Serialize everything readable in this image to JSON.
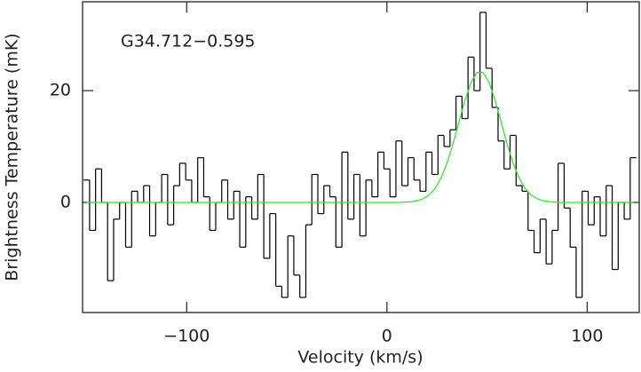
{
  "chart_data": {
    "type": "step",
    "annotation": "G34.712−0.595",
    "x_label": "Velocity (km/s)",
    "y_label": "Brightness Temperature (mK)",
    "xlim": [
      -152,
      126
    ],
    "ylim": [
      -19.7,
      35.9
    ],
    "xticks": [
      {
        "value": -100,
        "label": "−100"
      },
      0,
      100
    ],
    "yticks": [
      0,
      20
    ],
    "x": [
      -150,
      -147,
      -144,
      -141,
      -138,
      -135,
      -132,
      -129,
      -126,
      -123,
      -120,
      -117,
      -114,
      -111,
      -108,
      -105,
      -102,
      -99,
      -96,
      -93,
      -90,
      -87,
      -84,
      -81,
      -78,
      -75,
      -72,
      -69,
      -66,
      -63,
      -60,
      -57,
      -54,
      -51,
      -48,
      -45,
      -42,
      -39,
      -36,
      -33,
      -30,
      -27,
      -24,
      -21,
      -18,
      -15,
      -12,
      -9,
      -6,
      -3,
      0,
      3,
      6,
      9,
      12,
      15,
      18,
      21,
      24,
      27,
      30,
      33,
      36,
      39,
      42,
      45,
      48,
      51,
      54,
      57,
      60,
      63,
      66,
      69,
      72,
      75,
      78,
      81,
      84,
      87,
      90,
      93,
      96,
      99,
      102,
      105,
      108,
      111,
      114,
      117,
      120,
      123
    ],
    "series": [
      {
        "color": "#000000",
        "style": "step",
        "values": [
          4,
          -5,
          6,
          0,
          -14,
          -3,
          0,
          -8,
          2,
          0,
          3,
          -6,
          0,
          5,
          -4,
          3,
          7,
          4,
          0,
          8,
          1,
          -5,
          0,
          4,
          -3,
          2,
          -8,
          1,
          -3,
          5,
          -10,
          -2,
          -15,
          -17,
          -6,
          -13,
          -17,
          -4,
          5,
          -2,
          3,
          1,
          -8,
          9,
          -3,
          5,
          -6,
          4,
          1,
          9,
          6,
          1,
          11,
          3,
          8,
          4,
          2,
          9,
          5,
          12,
          10,
          13,
          19,
          15,
          26,
          20,
          34,
          24,
          17,
          11,
          6,
          12,
          3,
          2,
          -5,
          -9,
          -3,
          -11,
          -5,
          7,
          -1,
          -8,
          -17,
          2,
          -4,
          1,
          -6,
          3,
          -12,
          0,
          -3,
          8
        ]
      },
      {
        "color": "#33e833",
        "style": "line",
        "values": [
          0,
          0,
          0,
          0,
          0,
          0,
          0,
          0,
          0,
          0,
          0,
          0,
          0,
          0,
          0,
          0,
          0,
          0,
          0,
          0,
          0,
          0,
          0,
          0,
          0,
          0,
          0,
          0,
          0,
          0,
          0,
          0,
          0,
          0,
          0,
          0,
          0,
          0,
          0,
          0,
          0,
          0,
          0,
          0,
          0,
          0,
          0,
          0,
          0,
          0,
          0,
          0,
          0,
          0.05,
          0.12,
          0.29,
          0.64,
          1.32,
          2.49,
          4.36,
          7.03,
          10.47,
          14.41,
          18.3,
          21.48,
          23.27,
          23.27,
          21.48,
          18.3,
          14.41,
          10.47,
          7.03,
          4.36,
          2.49,
          1.32,
          0.64,
          0.29,
          0.12,
          0.05,
          0,
          0,
          0,
          0,
          0,
          0,
          0,
          0,
          0,
          0,
          0,
          0,
          0
        ]
      }
    ]
  }
}
